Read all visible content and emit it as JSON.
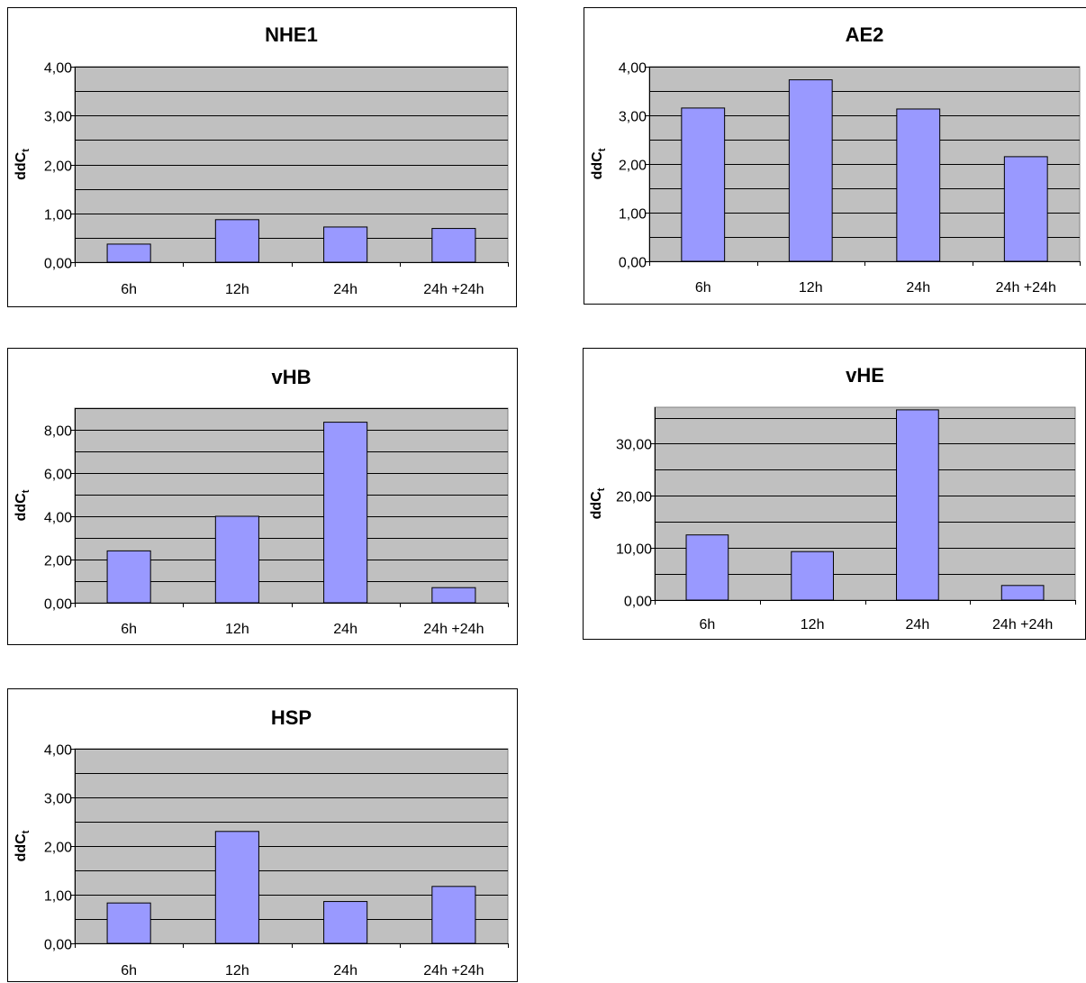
{
  "colors": {
    "plot_background": "#c0c0c0",
    "bar_fill": "#9999ff",
    "bar_stroke": "#000000",
    "gridline": "#000000",
    "frame": "#000000"
  },
  "chart_data": [
    {
      "type": "bar",
      "title": "NHE1",
      "ylabel": "ddC",
      "ylabel_subscript": "t",
      "categories": [
        "6h",
        "12h",
        "24h",
        "24h +24h"
      ],
      "values": [
        0.37,
        0.87,
        0.72,
        0.69
      ],
      "ylim": [
        0,
        4
      ],
      "yticks": [
        0,
        1,
        2,
        3,
        4
      ],
      "ytick_labels": [
        "0,00",
        "1,00",
        "2,00",
        "3,00",
        "4,00"
      ],
      "minor_gridline_step": 0.5,
      "grid": true,
      "legend": "none"
    },
    {
      "type": "bar",
      "title": "AE2",
      "ylabel": "ddC",
      "ylabel_subscript": "t",
      "categories": [
        "6h",
        "12h",
        "24h",
        "24h +24h"
      ],
      "values": [
        3.15,
        3.73,
        3.13,
        2.15
      ],
      "ylim": [
        0,
        4
      ],
      "yticks": [
        0,
        1,
        2,
        3,
        4
      ],
      "ytick_labels": [
        "0,00",
        "1,00",
        "2,00",
        "3,00",
        "4,00"
      ],
      "minor_gridline_step": 0.5,
      "grid": true,
      "legend": "none"
    },
    {
      "type": "bar",
      "title": "vHB",
      "ylabel": "ddC",
      "ylabel_subscript": "t",
      "categories": [
        "6h",
        "12h",
        "24h",
        "24h +24h"
      ],
      "values": [
        2.4,
        4.0,
        8.35,
        0.7
      ],
      "ylim": [
        0,
        9
      ],
      "yticks": [
        0,
        2,
        4,
        6,
        8
      ],
      "ytick_labels": [
        "0,00",
        "2,00",
        "4,00",
        "6,00",
        "8,00"
      ],
      "minor_gridline_step": 1,
      "grid": true,
      "legend": "none"
    },
    {
      "type": "bar",
      "title": "vHE",
      "ylabel": "ddC",
      "ylabel_subscript": "t",
      "categories": [
        "6h",
        "12h",
        "24h",
        "24h +24h"
      ],
      "values": [
        12.5,
        9.3,
        36.5,
        2.8
      ],
      "ylim": [
        0,
        37
      ],
      "yticks": [
        0,
        10,
        20,
        30
      ],
      "ytick_labels": [
        "0,00",
        "10,00",
        "20,00",
        "30,00"
      ],
      "minor_gridline_step": 5,
      "grid": true,
      "legend": "none"
    },
    {
      "type": "bar",
      "title": "HSP",
      "ylabel": "ddC",
      "ylabel_subscript": "t",
      "categories": [
        "6h",
        "12h",
        "24h",
        "24h +24h"
      ],
      "values": [
        0.83,
        2.3,
        0.86,
        1.17
      ],
      "ylim": [
        0,
        4
      ],
      "yticks": [
        0,
        1,
        2,
        3,
        4
      ],
      "ytick_labels": [
        "0,00",
        "1,00",
        "2,00",
        "3,00",
        "4,00"
      ],
      "minor_gridline_step": 0.5,
      "grid": true,
      "legend": "none"
    }
  ]
}
